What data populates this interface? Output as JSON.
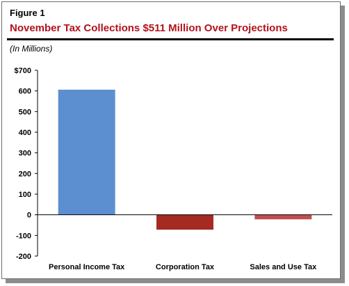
{
  "figure_label": "Figure 1",
  "chart_data": {
    "type": "bar",
    "title": "November Tax Collections $511 Million Over Projections",
    "subtitle": "(In Millions)",
    "categories": [
      "Personal Income Tax",
      "Corporation Tax",
      "Sales and Use Tax"
    ],
    "values": [
      606,
      -72,
      -22
    ],
    "colors": [
      "#5b8fd0",
      "#a52a22",
      "#c0504d"
    ],
    "ylim": [
      -200,
      700
    ],
    "yticks": [
      {
        "value": 700,
        "label": "$700"
      },
      {
        "value": 600,
        "label": "600"
      },
      {
        "value": 500,
        "label": "500"
      },
      {
        "value": 400,
        "label": "400"
      },
      {
        "value": 300,
        "label": "300"
      },
      {
        "value": 200,
        "label": "200"
      },
      {
        "value": 100,
        "label": "100"
      },
      {
        "value": 0,
        "label": "0"
      },
      {
        "value": -100,
        "label": "-100"
      },
      {
        "value": -200,
        "label": "-200"
      }
    ],
    "xlabel": "",
    "ylabel": "",
    "grid": false,
    "legend": "none"
  }
}
